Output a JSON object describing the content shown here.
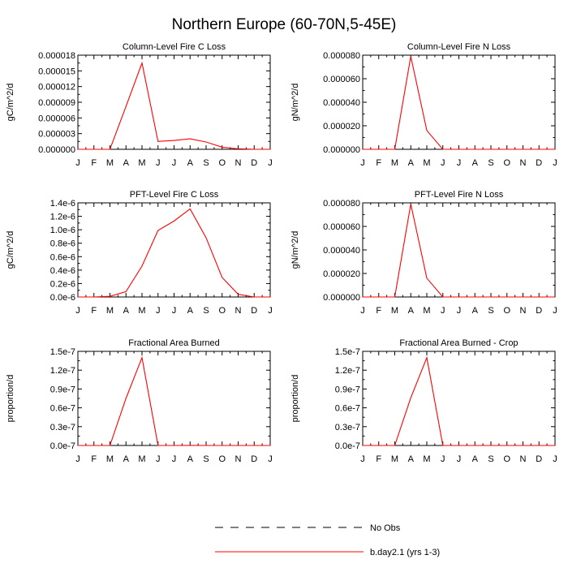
{
  "title": "Northern Europe (60-70N,5-45E)",
  "months": [
    "J",
    "F",
    "M",
    "A",
    "M",
    "J",
    "J",
    "A",
    "S",
    "O",
    "N",
    "D",
    "J"
  ],
  "legend": {
    "obs_label": "No Obs",
    "model_label": "b.day2.1 (yrs 1-3)"
  },
  "colors": {
    "model": "#ff0000",
    "obs": "#000000"
  },
  "chart_data": [
    {
      "type": "line",
      "title": "Column-Level Fire C Loss",
      "ylabel": "gC/m^2/d",
      "ylim": [
        0,
        1.8e-05
      ],
      "yticks": [
        "0.000000",
        "0.000003",
        "0.000006",
        "0.000009",
        "0.000012",
        "0.000015",
        "0.000018"
      ],
      "series": [
        {
          "values": [
            0,
            0,
            0,
            8.2e-06,
            1.65e-05,
            1.5e-06,
            1.7e-06,
            2e-06,
            1.4e-06,
            4e-07,
            1e-07,
            0,
            0
          ]
        }
      ]
    },
    {
      "type": "line",
      "title": "Column-Level Fire N Loss",
      "ylabel": "gN/m^2/d",
      "ylim": [
        0,
        8e-05
      ],
      "yticks": [
        "0.000000",
        "0.000020",
        "0.000040",
        "0.000060",
        "0.000080"
      ],
      "series": [
        {
          "values": [
            0,
            0,
            0,
            7.9e-05,
            1.6e-05,
            0,
            0,
            0,
            0,
            0,
            0,
            0,
            0
          ]
        }
      ]
    },
    {
      "type": "line",
      "title": "PFT-Level Fire C Loss",
      "ylabel": "gC/m^2/d",
      "ylim": [
        0,
        1.4e-06
      ],
      "yticks": [
        "0.0e-6",
        "0.2e-6",
        "0.4e-6",
        "0.6e-6",
        "0.8e-6",
        "1.0e-6",
        "1.2e-6",
        "1.4e-6"
      ],
      "series": [
        {
          "values": [
            0,
            0,
            1e-08,
            8e-08,
            4.6e-07,
            9.9e-07,
            1.13e-06,
            1.31e-06,
            8.8e-07,
            2.9e-07,
            4e-08,
            0,
            0
          ]
        }
      ]
    },
    {
      "type": "line",
      "title": "PFT-Level Fire N Loss",
      "ylabel": "gN/m^2/d",
      "ylim": [
        0,
        8e-05
      ],
      "yticks": [
        "0.000000",
        "0.000020",
        "0.000040",
        "0.000060",
        "0.000080"
      ],
      "series": [
        {
          "values": [
            0,
            0,
            0,
            7.9e-05,
            1.6e-05,
            0,
            0,
            0,
            0,
            0,
            0,
            0,
            0
          ]
        }
      ]
    },
    {
      "type": "line",
      "title": "Fractional Area Burned",
      "ylabel": "proportion/d",
      "ylim": [
        0,
        1.5e-07
      ],
      "yticks": [
        "0.0e-7",
        "0.3e-7",
        "0.6e-7",
        "0.9e-7",
        "1.2e-7",
        "1.5e-7"
      ],
      "series": [
        {
          "values": [
            0,
            0,
            0,
            7.5e-08,
            1.4e-07,
            0,
            0,
            1e-10,
            0,
            0,
            0,
            0,
            0
          ]
        }
      ]
    },
    {
      "type": "line",
      "title": "Fractional Area Burned - Crop",
      "ylabel": "proportion/d",
      "ylim": [
        0,
        1.5e-07
      ],
      "yticks": [
        "0.0e-7",
        "0.3e-7",
        "0.6e-7",
        "0.9e-7",
        "1.2e-7",
        "1.5e-7"
      ],
      "series": [
        {
          "values": [
            0,
            0,
            0,
            7.6e-08,
            1.4e-07,
            0,
            0,
            0,
            0,
            0,
            0,
            0,
            0
          ]
        }
      ]
    }
  ]
}
